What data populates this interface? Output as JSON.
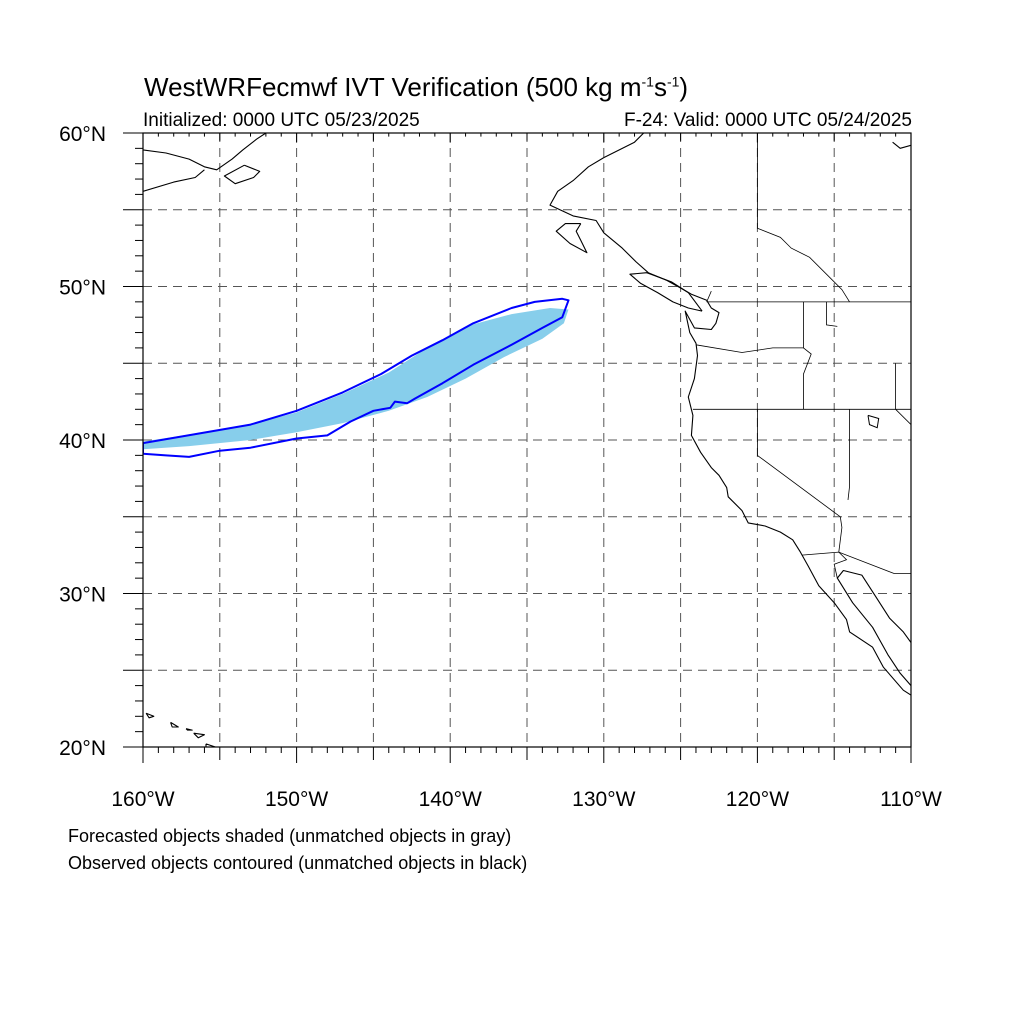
{
  "header": {
    "title_main": "WestWRFecmwf IVT Verification (500 kg m",
    "title_sup1": "-1",
    "title_s": "s",
    "title_sup2": "-1",
    "title_end": ")",
    "initialized": "Initialized: 0000 UTC 05/23/2025",
    "valid": "F-24: Valid: 0000 UTC 05/24/2025"
  },
  "map": {
    "projection": "cylindrical equidistant",
    "lon_range": [
      -160,
      -110
    ],
    "lat_range": [
      20,
      60
    ],
    "grid": "dashed, every 5 degrees",
    "lon_labels": [
      "160°W",
      "150°W",
      "140°W",
      "130°W",
      "120°W",
      "110°W"
    ],
    "lat_labels": [
      "20°N",
      "30°N",
      "40°N",
      "50°N",
      "60°N"
    ],
    "colors": {
      "forecast_fill": "#87ceeb",
      "observed_contour": "#0000ff",
      "coastline": "#000000",
      "grid": "#555555"
    },
    "forecast_object": {
      "label": "Forecasted object (matched, shaded)",
      "polygon": [
        [
          -160.0,
          39.9
        ],
        [
          -156.0,
          40.5
        ],
        [
          -153.0,
          41.0
        ],
        [
          -150.0,
          41.8
        ],
        [
          -147.0,
          43.0
        ],
        [
          -144.0,
          44.4
        ],
        [
          -141.5,
          46.0
        ],
        [
          -139.0,
          47.4
        ],
        [
          -136.0,
          48.2
        ],
        [
          -133.5,
          48.6
        ],
        [
          -132.3,
          48.5
        ],
        [
          -132.6,
          47.6
        ],
        [
          -134.0,
          46.6
        ],
        [
          -136.5,
          45.4
        ],
        [
          -139.0,
          44.0
        ],
        [
          -141.5,
          42.8
        ],
        [
          -144.0,
          41.9
        ],
        [
          -147.0,
          41.1
        ],
        [
          -150.0,
          40.5
        ],
        [
          -153.0,
          40.0
        ],
        [
          -157.0,
          39.6
        ],
        [
          -160.0,
          39.4
        ]
      ]
    },
    "observed_object": {
      "label": "Observed object (matched, contoured)",
      "polygon": [
        [
          -160.0,
          39.8
        ],
        [
          -156.5,
          40.4
        ],
        [
          -153.0,
          41.0
        ],
        [
          -150.0,
          41.9
        ],
        [
          -147.0,
          43.1
        ],
        [
          -144.5,
          44.3
        ],
        [
          -142.5,
          45.5
        ],
        [
          -140.5,
          46.5
        ],
        [
          -138.5,
          47.6
        ],
        [
          -136.0,
          48.6
        ],
        [
          -134.5,
          49.0
        ],
        [
          -132.7,
          49.2
        ],
        [
          -132.3,
          49.1
        ],
        [
          -132.7,
          48.0
        ],
        [
          -134.0,
          47.3
        ],
        [
          -136.0,
          46.2
        ],
        [
          -138.5,
          44.9
        ],
        [
          -140.5,
          43.7
        ],
        [
          -142.3,
          42.7
        ],
        [
          -142.8,
          42.4
        ],
        [
          -143.6,
          42.5
        ],
        [
          -143.9,
          42.1
        ],
        [
          -145.0,
          41.9
        ],
        [
          -146.5,
          41.2
        ],
        [
          -148.0,
          40.3
        ],
        [
          -150.0,
          40.1
        ],
        [
          -153.0,
          39.5
        ],
        [
          -155.0,
          39.3
        ],
        [
          -157.0,
          38.9
        ],
        [
          -158.5,
          39.0
        ],
        [
          -160.0,
          39.1
        ]
      ]
    },
    "coastlines": [
      [
        [
          -127.4,
          60.0
        ],
        [
          -128.0,
          59.4
        ],
        [
          -130.0,
          58.4
        ],
        [
          -131.0,
          57.8
        ],
        [
          -132.0,
          56.9
        ],
        [
          -133.0,
          56.2
        ],
        [
          -133.5,
          55.3
        ],
        [
          -132.0,
          54.6
        ],
        [
          -130.5,
          54.3
        ],
        [
          -130.0,
          53.5
        ],
        [
          -128.8,
          52.5
        ],
        [
          -127.9,
          51.6
        ],
        [
          -127.1,
          50.9
        ],
        [
          -125.9,
          50.4
        ],
        [
          -125.0,
          49.9
        ],
        [
          -124.3,
          49.5
        ],
        [
          -123.3,
          49.1
        ],
        [
          -123.0,
          48.6
        ],
        [
          -122.5,
          48.3
        ],
        [
          -122.7,
          47.6
        ],
        [
          -123.0,
          47.2
        ],
        [
          -124.1,
          47.3
        ],
        [
          -124.7,
          48.4
        ],
        [
          -124.4,
          47.0
        ],
        [
          -124.0,
          46.3
        ],
        [
          -123.9,
          45.5
        ],
        [
          -124.1,
          44.0
        ],
        [
          -124.5,
          42.8
        ],
        [
          -124.2,
          41.6
        ],
        [
          -124.3,
          40.3
        ],
        [
          -123.7,
          39.2
        ],
        [
          -123.0,
          38.2
        ],
        [
          -122.5,
          37.7
        ],
        [
          -122.0,
          36.9
        ],
        [
          -121.9,
          36.3
        ],
        [
          -121.0,
          35.4
        ],
        [
          -120.6,
          34.6
        ],
        [
          -119.5,
          34.4
        ],
        [
          -118.5,
          34.0
        ],
        [
          -117.7,
          33.5
        ],
        [
          -117.2,
          32.7
        ],
        [
          -116.7,
          31.8
        ],
        [
          -116.0,
          30.5
        ],
        [
          -115.0,
          29.4
        ],
        [
          -114.2,
          28.3
        ],
        [
          -114.0,
          27.5
        ],
        [
          -112.5,
          26.5
        ],
        [
          -111.8,
          25.2
        ],
        [
          -110.5,
          23.7
        ],
        [
          -109.4,
          23.0
        ]
      ],
      [
        [
          -109.4,
          23.0
        ],
        [
          -110.0,
          24.0
        ],
        [
          -110.7,
          24.8
        ],
        [
          -111.5,
          26.0
        ],
        [
          -112.5,
          27.8
        ],
        [
          -113.8,
          29.4
        ],
        [
          -114.8,
          31.0
        ],
        [
          -114.4,
          31.5
        ],
        [
          -113.2,
          31.2
        ],
        [
          -112.3,
          29.8
        ],
        [
          -111.4,
          28.4
        ],
        [
          -110.5,
          27.5
        ],
        [
          -110.0,
          26.8
        ],
        [
          -109.4,
          25.8
        ]
      ],
      [
        [
          -123.6,
          48.4
        ],
        [
          -124.5,
          48.6
        ],
        [
          -125.5,
          49.0
        ],
        [
          -126.5,
          49.6
        ],
        [
          -127.6,
          50.2
        ],
        [
          -128.3,
          50.8
        ],
        [
          -127.2,
          50.9
        ],
        [
          -125.6,
          50.3
        ],
        [
          -124.5,
          49.6
        ],
        [
          -123.6,
          48.4
        ]
      ],
      [
        [
          -131.5,
          54.1
        ],
        [
          -132.5,
          54.1
        ],
        [
          -133.1,
          53.6
        ],
        [
          -132.2,
          52.8
        ],
        [
          -131.1,
          52.2
        ],
        [
          -131.5,
          53.0
        ],
        [
          -131.8,
          53.6
        ],
        [
          -131.5,
          54.1
        ]
      ],
      [
        [
          -160.0,
          58.9
        ],
        [
          -158.5,
          58.7
        ],
        [
          -157.0,
          58.3
        ],
        [
          -156.0,
          57.8
        ],
        [
          -155.2,
          57.6
        ],
        [
          -154.2,
          58.3
        ],
        [
          -153.5,
          58.9
        ],
        [
          -152.6,
          59.6
        ],
        [
          -152.0,
          60.0
        ]
      ],
      [
        [
          -160.0,
          56.2
        ],
        [
          -158.0,
          56.8
        ],
        [
          -156.6,
          57.1
        ],
        [
          -156.0,
          57.6
        ]
      ],
      [
        [
          -153.4,
          57.9
        ],
        [
          -152.4,
          57.5
        ],
        [
          -152.8,
          57.1
        ],
        [
          -154.0,
          56.7
        ],
        [
          -154.7,
          57.2
        ],
        [
          -153.4,
          57.9
        ]
      ],
      [
        [
          -159.8,
          22.2
        ],
        [
          -159.3,
          22.0
        ],
        [
          -159.6,
          21.9
        ],
        [
          -159.8,
          22.2
        ]
      ],
      [
        [
          -158.2,
          21.6
        ],
        [
          -157.7,
          21.3
        ],
        [
          -158.1,
          21.3
        ],
        [
          -158.2,
          21.6
        ]
      ],
      [
        [
          -157.2,
          21.2
        ],
        [
          -156.8,
          21.1
        ],
        [
          -157.1,
          21.1
        ],
        [
          -157.2,
          21.2
        ]
      ],
      [
        [
          -156.7,
          20.9
        ],
        [
          -156.0,
          20.8
        ],
        [
          -156.4,
          20.6
        ],
        [
          -156.7,
          20.9
        ]
      ],
      [
        [
          -155.9,
          20.2
        ],
        [
          -155.0,
          19.9
        ],
        [
          -154.8,
          19.5
        ],
        [
          -155.6,
          19.0
        ],
        [
          -155.9,
          19.6
        ],
        [
          -155.9,
          20.2
        ]
      ],
      [
        [
          -110.0,
          59.2
        ],
        [
          -110.7,
          59.0
        ],
        [
          -111.2,
          59.4
        ]
      ]
    ],
    "borders": [
      [
        [
          -123.3,
          49.0
        ],
        [
          -110.0,
          49.0
        ]
      ],
      [
        [
          -124.2,
          42.0
        ],
        [
          -110.0,
          42.0
        ]
      ],
      [
        [
          -120.0,
          42.0
        ],
        [
          -120.0,
          39.0
        ],
        [
          -114.6,
          35.0
        ],
        [
          -114.5,
          34.3
        ],
        [
          -114.7,
          32.7
        ]
      ],
      [
        [
          -117.1,
          32.5
        ],
        [
          -114.7,
          32.7
        ],
        [
          -111.1,
          31.3
        ],
        [
          -110.0,
          31.3
        ]
      ],
      [
        [
          -117.0,
          49.0
        ],
        [
          -117.0,
          46.0
        ],
        [
          -116.5,
          45.6
        ],
        [
          -117.0,
          44.3
        ],
        [
          -117.0,
          42.0
        ]
      ],
      [
        [
          -124.0,
          46.2
        ],
        [
          -121.0,
          45.7
        ],
        [
          -119.0,
          46.0
        ],
        [
          -117.0,
          46.0
        ]
      ],
      [
        [
          -114.0,
          42.0
        ],
        [
          -114.0,
          37.0
        ],
        [
          -114.1,
          36.1
        ]
      ],
      [
        [
          -111.0,
          45.0
        ],
        [
          -111.0,
          42.0
        ],
        [
          -110.0,
          41.0
        ]
      ],
      [
        [
          -115.5,
          49.0
        ],
        [
          -115.5,
          47.5
        ],
        [
          -114.8,
          47.4
        ]
      ],
      [
        [
          -123.3,
          49.0
        ],
        [
          -123.0,
          49.7
        ]
      ],
      [
        [
          -120.0,
          60.0
        ],
        [
          -120.0,
          53.8
        ],
        [
          -118.5,
          53.2
        ],
        [
          -117.8,
          52.5
        ],
        [
          -116.6,
          51.9
        ],
        [
          -115.3,
          50.6
        ],
        [
          -114.5,
          49.8
        ],
        [
          -114.0,
          49.0
        ]
      ],
      [
        [
          -114.7,
          32.7
        ],
        [
          -114.2,
          32.2
        ],
        [
          -115.0,
          31.9
        ],
        [
          -114.8,
          31.0
        ]
      ]
    ],
    "lakes": [
      [
        [
          -112.8,
          41.6
        ],
        [
          -112.1,
          41.4
        ],
        [
          -112.2,
          40.8
        ],
        [
          -112.7,
          41.0
        ],
        [
          -112.8,
          41.6
        ]
      ]
    ]
  },
  "footer": {
    "line1": "Forecasted objects shaded (unmatched objects in gray)",
    "line2": "Observed objects contoured (unmatched objects in black)"
  }
}
